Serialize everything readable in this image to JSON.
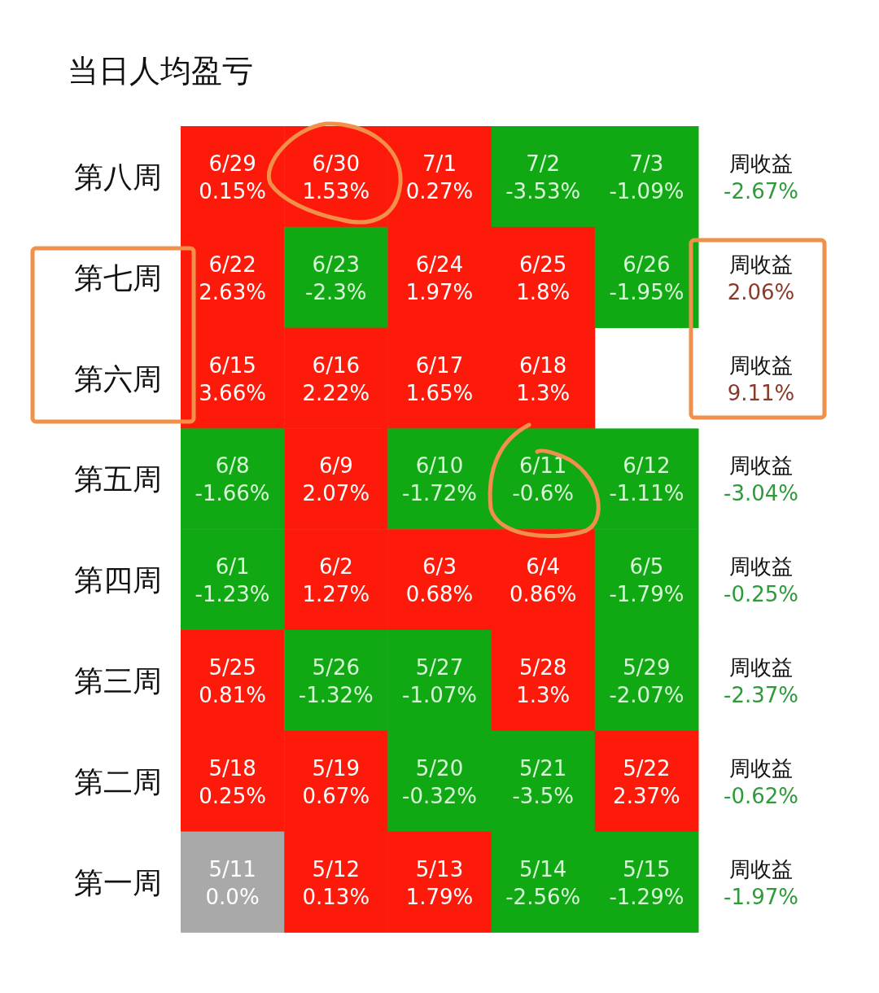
{
  "chart_data": {
    "type": "heatmap",
    "title": "当日人均盈亏",
    "categories": [
      null,
      null,
      null,
      null,
      null
    ],
    "y_categories": [
      "第八周",
      "第七周",
      "第六周",
      "第五周",
      "第四周",
      "第三周",
      "第二周",
      "第一周"
    ],
    "y2_categories": [
      "周收益\n-2.67%",
      "周收益\n2.06%",
      "周收益\n9.11%",
      "周收益\n-3.04%",
      "周收益\n-0.25%",
      "周收益\n-2.37%",
      "周收益\n-0.62%",
      "周收益\n-1.97%"
    ],
    "cells": [
      [
        0.15,
        1.53,
        0.27,
        -3.53,
        -1.09
      ],
      [
        2.63,
        -2.3,
        1.97,
        1.8,
        -1.95
      ],
      [
        3.66,
        2.22,
        1.65,
        1.3,
        null
      ],
      [
        -1.66,
        2.07,
        -1.72,
        -0.6,
        -1.11
      ],
      [
        -1.23,
        1.27,
        0.68,
        0.86,
        -1.79
      ],
      [
        0.81,
        -1.32,
        -1.07,
        1.3,
        -2.07
      ],
      [
        0.25,
        0.67,
        -0.32,
        -3.5,
        2.37
      ],
      [
        0.0,
        0.13,
        1.79,
        -2.56,
        -1.29
      ]
    ],
    "cell_labels": [
      [
        "0.15%",
        "1.53%",
        "0.27%",
        "-3.53%",
        "-1.09%"
      ],
      [
        "2.63%",
        "-2.3%",
        "1.97%",
        "1.8%",
        "-1.95%"
      ],
      [
        "3.66%",
        "2.22%",
        "1.65%",
        "1.3%",
        null
      ],
      [
        "-1.66%",
        "2.07%",
        "-1.72%",
        "-0.6%",
        "-1.11%"
      ],
      [
        "-1.23%",
        "1.27%",
        "0.68%",
        "0.86%",
        "-1.79%"
      ],
      [
        "0.81%",
        "-1.32%",
        "-1.07%",
        "1.3%",
        "-2.07%"
      ],
      [
        "0.25%",
        "0.67%",
        "-0.32%",
        "-3.5%",
        "2.37%"
      ],
      [
        "0.0%",
        "0.13%",
        "1.79%",
        "-2.56%",
        "-1.29%"
      ]
    ],
    "annotations": [
      "6/29",
      "6/30",
      "7/1",
      "7/2",
      "7/3",
      "6/22",
      "6/23",
      "6/24",
      "6/25",
      "6/26",
      "6/15",
      "6/16",
      "6/17",
      "6/18",
      "6/8",
      "6/9",
      "6/10",
      "6/11",
      "6/12",
      "6/1",
      "6/2",
      "6/3",
      "6/4",
      "6/5",
      "5/25",
      "5/26",
      "5/27",
      "5/28",
      "5/29",
      "5/18",
      "5/19",
      "5/20",
      "5/21",
      "5/22",
      "5/11",
      "5/12",
      "5/13",
      "5/14",
      "5/15"
    ],
    "colors": [
      [
        "#fe1a0a",
        "#fe1a0a",
        "#fe1a0a",
        "#10a813",
        "#10a813"
      ],
      [
        "#fe1a0a",
        "#10a813",
        "#fe1a0a",
        "#fe1a0a",
        "#10a813"
      ],
      [
        "#fe1a0a",
        "#fe1a0a",
        "#fe1a0a",
        "#fe1a0a",
        null
      ],
      [
        "#10a813",
        "#fe1a0a",
        "#10a813",
        "#10a813",
        "#10a813"
      ],
      [
        "#10a813",
        "#fe1a0a",
        "#fe1a0a",
        "#fe1a0a",
        "#10a813"
      ],
      [
        "#fe1a0a",
        "#10a813",
        "#10a813",
        "#fe1a0a",
        "#10a813"
      ],
      [
        "#fe1a0a",
        "#fe1a0a",
        "#10a813",
        "#10a813",
        "#fe1a0a"
      ],
      [
        "#a9a9a9",
        "#fe1a0a",
        "#fe1a0a",
        "#10a813",
        "#10a813"
      ]
    ]
  }
}
